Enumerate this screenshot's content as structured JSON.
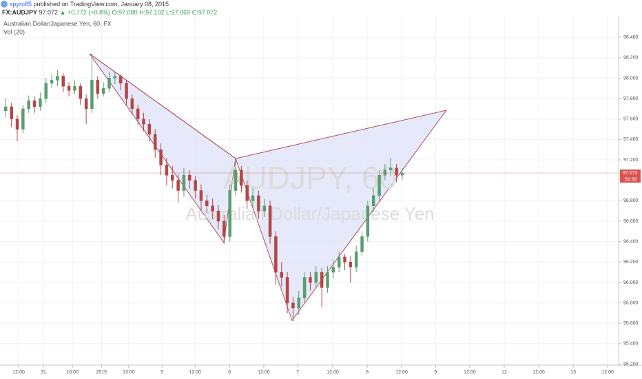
{
  "header": {
    "author": "spyro85",
    "published": "published on TradingView.com, January 08, 2015",
    "symbol": "FX:AUDJPY",
    "price": "97.072",
    "change": "▲ +0.772 (+0.8%)",
    "ohlc": [
      "O:97.080",
      "H:97.102",
      "L:97.069",
      "C:97.072"
    ]
  },
  "chart_data": {
    "type": "candlestick",
    "title": "Australian Dollar/Japanese Yen, 60, FX",
    "indicator": "Vol (20)",
    "watermark": [
      "AUDJPY, 60",
      "Australian Dollar/Japanese Yen"
    ],
    "x": [
      2,
      4,
      6,
      8,
      10,
      12,
      14,
      16,
      18,
      20,
      22,
      24,
      26,
      28,
      30,
      32,
      34,
      36,
      38,
      40,
      42,
      44,
      46,
      48,
      50,
      52,
      54,
      56,
      58,
      60,
      62,
      64,
      66,
      68,
      70,
      72,
      74,
      76,
      78,
      80,
      82,
      84,
      86,
      88,
      90,
      92,
      94,
      96,
      98,
      100,
      102,
      104,
      106,
      108,
      110,
      112,
      114,
      116,
      118,
      120,
      122,
      124,
      126,
      128,
      130,
      132,
      134,
      136,
      138,
      140
    ],
    "open": [
      97.68,
      97.72,
      97.6,
      97.5,
      97.7,
      97.78,
      97.72,
      97.8,
      97.95,
      97.98,
      98.02,
      97.92,
      97.88,
      97.92,
      97.8,
      97.7,
      97.98,
      97.85,
      97.9,
      98.0,
      98.02,
      97.95,
      97.8,
      97.7,
      97.6,
      97.55,
      97.45,
      97.3,
      97.15,
      97.05,
      97.0,
      96.9,
      97.05,
      97.0,
      96.9,
      96.8,
      96.75,
      96.7,
      96.6,
      96.45,
      96.9,
      97.1,
      96.95,
      96.8,
      96.85,
      96.7,
      96.75,
      96.45,
      96.1,
      96.05,
      95.8,
      95.75,
      95.85,
      96.05,
      96.0,
      96.1,
      95.95,
      96.1,
      96.15,
      96.25,
      96.2,
      96.15,
      96.3,
      96.45,
      96.75,
      96.85,
      97.05,
      97.1,
      97.12,
      97.05
    ],
    "high": [
      97.8,
      97.76,
      97.64,
      97.74,
      97.83,
      97.82,
      97.86,
      98.0,
      98.04,
      98.08,
      98.05,
      97.96,
      97.98,
      97.95,
      97.84,
      98.24,
      98.02,
      97.96,
      98.06,
      98.06,
      98.04,
      97.98,
      97.84,
      97.74,
      97.66,
      97.6,
      97.5,
      97.36,
      97.22,
      97.14,
      97.06,
      97.12,
      97.1,
      97.04,
      96.96,
      96.86,
      96.82,
      96.76,
      96.66,
      96.96,
      97.2,
      97.14,
      97.0,
      96.92,
      96.9,
      96.82,
      96.8,
      96.5,
      96.2,
      96.1,
      95.86,
      95.92,
      96.1,
      96.1,
      96.16,
      96.14,
      96.16,
      96.22,
      96.3,
      96.28,
      96.26,
      96.36,
      96.5,
      96.8,
      96.92,
      97.1,
      97.16,
      97.22,
      97.16,
      97.12
    ],
    "low": [
      97.62,
      97.52,
      97.38,
      97.46,
      97.66,
      97.66,
      97.68,
      97.76,
      97.9,
      97.92,
      97.86,
      97.82,
      97.84,
      97.74,
      97.55,
      97.66,
      97.8,
      97.82,
      97.86,
      97.94,
      97.88,
      97.74,
      97.64,
      97.54,
      97.48,
      97.38,
      97.22,
      97.05,
      96.95,
      96.92,
      96.78,
      96.84,
      96.92,
      96.82,
      96.7,
      96.68,
      96.62,
      96.52,
      96.38,
      96.4,
      96.85,
      96.88,
      96.72,
      96.74,
      96.62,
      96.64,
      96.38,
      95.98,
      95.96,
      95.7,
      95.62,
      95.68,
      95.8,
      95.92,
      95.94,
      95.76,
      95.9,
      96.04,
      96.1,
      96.12,
      96.0,
      96.1,
      96.26,
      96.4,
      96.7,
      96.8,
      97.0,
      97.04,
      96.98,
      97.0
    ],
    "close": [
      97.72,
      97.6,
      97.5,
      97.7,
      97.78,
      97.72,
      97.8,
      97.95,
      97.98,
      98.02,
      97.92,
      97.88,
      97.92,
      97.8,
      97.7,
      97.98,
      97.85,
      97.9,
      98.0,
      98.02,
      97.95,
      97.8,
      97.7,
      97.6,
      97.55,
      97.45,
      97.3,
      97.15,
      97.05,
      97.0,
      96.9,
      97.05,
      97.0,
      96.9,
      96.8,
      96.75,
      96.7,
      96.6,
      96.45,
      96.9,
      97.1,
      96.95,
      96.8,
      96.85,
      96.7,
      96.75,
      96.45,
      96.1,
      96.05,
      95.8,
      95.75,
      95.85,
      96.05,
      96.0,
      96.1,
      95.95,
      96.1,
      96.15,
      96.25,
      96.2,
      96.15,
      96.3,
      96.45,
      96.75,
      96.85,
      97.05,
      97.1,
      97.12,
      97.05,
      97.07
    ],
    "up_color": "#5a9e6f",
    "down_color": "#b24747",
    "last_price": 97.072,
    "last_price_color": "#d9534f",
    "countdown": "52:58",
    "ylim": [
      95.19,
      98.61
    ],
    "yticks": [
      {
        "value": 95.2,
        "label": "95.200"
      },
      {
        "value": 95.4,
        "label": "95.400"
      },
      {
        "value": 95.6,
        "label": "95.600"
      },
      {
        "value": 95.8,
        "label": "95.800"
      },
      {
        "value": 96.0,
        "label": "96.000"
      },
      {
        "value": 96.2,
        "label": "96.200"
      },
      {
        "value": 96.4,
        "label": "96.400"
      },
      {
        "value": 96.6,
        "label": "96.600"
      },
      {
        "value": 96.8,
        "label": "96.800"
      },
      {
        "value": 97.2,
        "label": "97.200"
      },
      {
        "value": 97.4,
        "label": "97.400"
      },
      {
        "value": 97.6,
        "label": "97.600"
      },
      {
        "value": 97.8,
        "label": "97.800"
      },
      {
        "value": 98.0,
        "label": "98.000"
      },
      {
        "value": 98.2,
        "label": "98.200"
      },
      {
        "value": 98.4,
        "label": "98.400"
      }
    ],
    "xlim": [
      0,
      215.3
    ],
    "xticks": [
      {
        "value": 6.5,
        "label": "12:00"
      },
      {
        "value": 15.1,
        "label": "31"
      },
      {
        "value": 25.2,
        "label": "10:00"
      },
      {
        "value": 35.3,
        "label": "2015"
      },
      {
        "value": 44.8,
        "label": "13:00"
      },
      {
        "value": 56.4,
        "label": "5"
      },
      {
        "value": 67.9,
        "label": "12:00"
      },
      {
        "value": 79.9,
        "label": "6"
      },
      {
        "value": 91.8,
        "label": "12:00"
      },
      {
        "value": 103.6,
        "label": "7"
      },
      {
        "value": 115.8,
        "label": "12:00"
      },
      {
        "value": 127.8,
        "label": "8"
      },
      {
        "value": 139.8,
        "label": "12:00"
      },
      {
        "value": 151.6,
        "label": "9"
      },
      {
        "value": 163.5,
        "label": "12:00"
      },
      {
        "value": 175.5,
        "label": "12"
      },
      {
        "value": 187.5,
        "label": "12:00"
      },
      {
        "value": 199.5,
        "label": "13"
      },
      {
        "value": 211.5,
        "label": "12:00"
      }
    ],
    "grid": true
  }
}
